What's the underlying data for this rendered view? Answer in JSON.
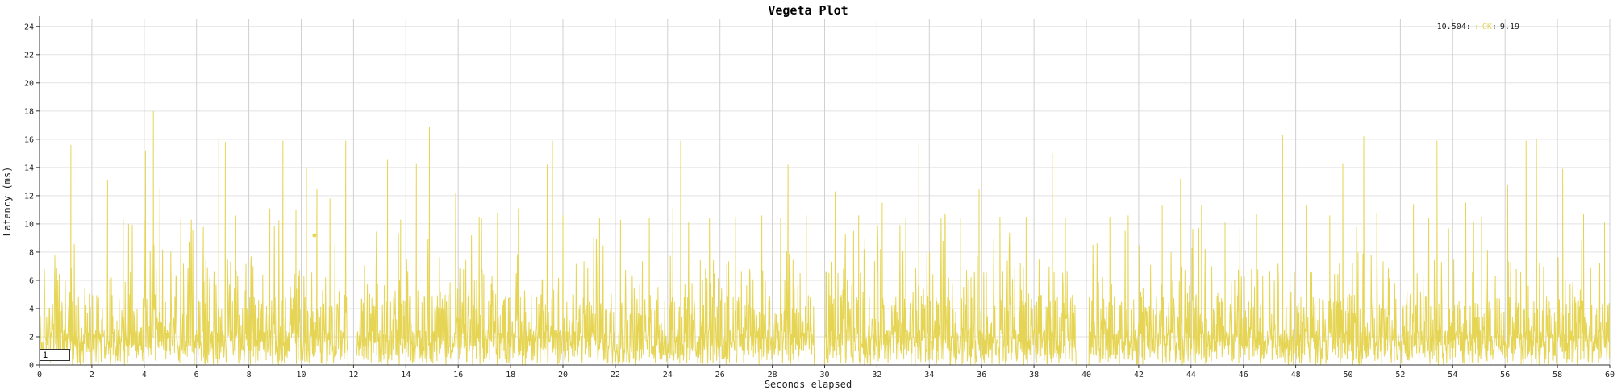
{
  "chart_data": {
    "type": "line",
    "title": "Vegeta Plot",
    "xlabel": "Seconds elapsed",
    "ylabel": "Latency (ms)",
    "xlim": [
      0,
      60
    ],
    "ylim": [
      0,
      24.5
    ],
    "x_ticks": [
      0,
      2,
      4,
      6,
      8,
      10,
      12,
      14,
      16,
      18,
      20,
      22,
      24,
      26,
      28,
      30,
      32,
      34,
      36,
      38,
      40,
      42,
      44,
      46,
      48,
      50,
      52,
      54,
      56,
      58,
      60
    ],
    "y_ticks": [
      0,
      2,
      4,
      6,
      8,
      10,
      12,
      14,
      16,
      18,
      20,
      22,
      24
    ],
    "grid": true,
    "series": [
      {
        "name": "OK",
        "color": "#e6d555"
      }
    ],
    "legend": {
      "position": "top-right",
      "x_value": "10.504",
      "sep": ":",
      "y_value": "9.19"
    },
    "highlight_point": {
      "x": 10.504,
      "y": 9.19
    },
    "gaps": [
      [
        11.8,
        12.1
      ],
      [
        29.6,
        30.0
      ],
      [
        39.6,
        40.1
      ]
    ],
    "spikes": [
      [
        1.2,
        15.6
      ],
      [
        2.6,
        13.1
      ],
      [
        3.2,
        10.3
      ],
      [
        4.05,
        15.2
      ],
      [
        4.35,
        18.0
      ],
      [
        4.6,
        12.6
      ],
      [
        5.4,
        10.3
      ],
      [
        5.8,
        10.3
      ],
      [
        6.85,
        16.0
      ],
      [
        7.1,
        15.8
      ],
      [
        7.5,
        10.6
      ],
      [
        8.8,
        11.1
      ],
      [
        9.3,
        15.9
      ],
      [
        9.8,
        11.0
      ],
      [
        10.2,
        14.0
      ],
      [
        10.6,
        12.5
      ],
      [
        11.1,
        11.8
      ],
      [
        11.7,
        15.9
      ],
      [
        13.3,
        14.6
      ],
      [
        13.8,
        10.3
      ],
      [
        14.4,
        14.3
      ],
      [
        14.9,
        16.9
      ],
      [
        15.9,
        12.2
      ],
      [
        16.8,
        10.5
      ],
      [
        17.5,
        10.8
      ],
      [
        18.3,
        11.1
      ],
      [
        19.4,
        14.2
      ],
      [
        19.6,
        15.9
      ],
      [
        20.0,
        10.6
      ],
      [
        21.4,
        10.4
      ],
      [
        22.2,
        10.3
      ],
      [
        23.3,
        10.4
      ],
      [
        24.2,
        11.1
      ],
      [
        24.5,
        15.9
      ],
      [
        24.8,
        10.1
      ],
      [
        25.6,
        10.4
      ],
      [
        26.6,
        10.5
      ],
      [
        27.6,
        10.6
      ],
      [
        28.6,
        14.2
      ],
      [
        29.3,
        10.6
      ],
      [
        30.4,
        12.3
      ],
      [
        31.3,
        10.6
      ],
      [
        32.2,
        11.5
      ],
      [
        33.1,
        10.4
      ],
      [
        33.6,
        15.7
      ],
      [
        34.6,
        10.7
      ],
      [
        35.2,
        10.4
      ],
      [
        35.9,
        12.5
      ],
      [
        36.7,
        10.5
      ],
      [
        37.7,
        10.5
      ],
      [
        38.7,
        15.0
      ],
      [
        39.2,
        10.4
      ],
      [
        40.9,
        10.5
      ],
      [
        41.6,
        10.6
      ],
      [
        42.9,
        11.3
      ],
      [
        43.6,
        13.2
      ],
      [
        44.4,
        11.3
      ],
      [
        45.3,
        10.1
      ],
      [
        46.5,
        10.7
      ],
      [
        47.5,
        16.3
      ],
      [
        48.4,
        11.3
      ],
      [
        49.3,
        10.6
      ],
      [
        49.8,
        14.3
      ],
      [
        50.6,
        16.2
      ],
      [
        51.1,
        10.8
      ],
      [
        52.5,
        11.4
      ],
      [
        53.4,
        15.9
      ],
      [
        54.5,
        11.5
      ],
      [
        55.1,
        10.5
      ],
      [
        56.1,
        12.8
      ],
      [
        56.8,
        15.9
      ],
      [
        57.2,
        16.0
      ],
      [
        58.2,
        13.9
      ],
      [
        59.0,
        10.7
      ],
      [
        59.8,
        10.1
      ]
    ]
  },
  "controls": {
    "rolling_window": "1"
  }
}
